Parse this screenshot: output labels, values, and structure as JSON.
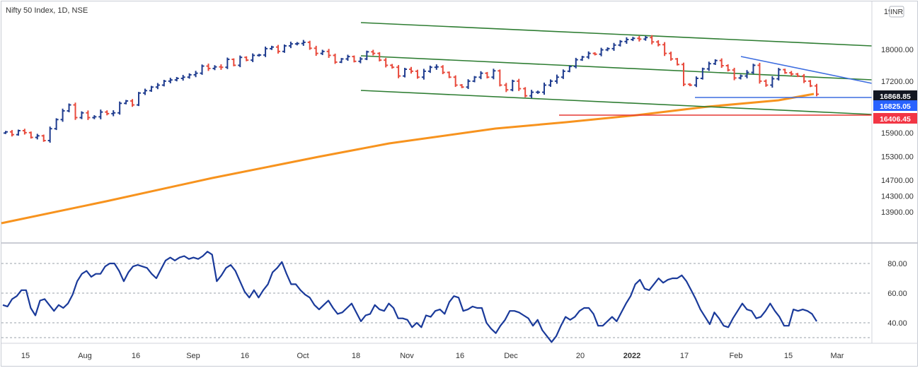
{
  "header": {
    "title": "Nifty 50 Index, 1D, NSE",
    "currency": "INR"
  },
  "price_axis": {
    "top_label": "19",
    "ticks": [
      "18000.00",
      "17200.00",
      "16600.00",
      "15900.00",
      "15300.00",
      "14700.00",
      "14300.00",
      "13900.00"
    ]
  },
  "price_badges": [
    {
      "label": "16868.85",
      "color": "#131722"
    },
    {
      "label": "16825.05",
      "color": "#2962ff"
    },
    {
      "label": "16406.45",
      "color": "#f23645"
    }
  ],
  "rsi_axis": {
    "ticks": [
      "80.00",
      "60.00",
      "40.00"
    ]
  },
  "time_axis": {
    "labels": [
      "15",
      "Aug",
      "16",
      "Sep",
      "16",
      "Oct",
      "18",
      "Nov",
      "16",
      "Dec",
      "20",
      "2022",
      "17",
      "Feb",
      "15",
      "Mar"
    ]
  },
  "colors": {
    "up": "#1f3c8f",
    "down": "#e84a3c",
    "ma": "#f7931e",
    "channel": "#2e7d32",
    "trendline": "#3d6de0",
    "support_red": "#e53935",
    "rsi": "#1a3a9a"
  },
  "chart_data": [
    {
      "type": "candlestick",
      "title": "Nifty 50 Index, 1D, NSE",
      "ylim": [
        13700,
        19000
      ],
      "x_labels": [
        "15",
        "Aug",
        "16",
        "Sep",
        "16",
        "Oct",
        "18",
        "Nov",
        "16",
        "Dec",
        "20",
        "2022",
        "17",
        "Feb",
        "15",
        "Mar"
      ],
      "close": [
        15920,
        15850,
        15950,
        15900,
        15780,
        15820,
        15700,
        16000,
        16230,
        16450,
        16600,
        16280,
        16400,
        16280,
        16300,
        16420,
        16380,
        16400,
        16640,
        16700,
        16600,
        16900,
        16960,
        17050,
        17100,
        17200,
        17230,
        17270,
        17300,
        17360,
        17400,
        17580,
        17520,
        17560,
        17550,
        17750,
        17600,
        17800,
        17730,
        17850,
        17860,
        18020,
        18060,
        17950,
        18090,
        18140,
        18150,
        18180,
        18030,
        17900,
        17950,
        17850,
        17680,
        17760,
        17820,
        17700,
        17760,
        17940,
        17900,
        17730,
        17600,
        17550,
        17330,
        17500,
        17450,
        17300,
        17450,
        17550,
        17560,
        17420,
        17300,
        17100,
        17050,
        17200,
        17300,
        17400,
        17300,
        17460,
        17100,
        16980,
        17200,
        17010,
        16830,
        16920,
        16920,
        17100,
        17200,
        17300,
        17450,
        17570,
        17740,
        17810,
        17900,
        17880,
        17990,
        18020,
        18110,
        18200,
        18250,
        18280,
        18260,
        18300,
        18190,
        18120,
        17900,
        17760,
        17620,
        17120,
        17100,
        17270,
        17510,
        17640,
        17720,
        17590,
        17480,
        17280,
        17330,
        17420,
        17600,
        17200,
        17100,
        17260,
        17490,
        17410,
        17380,
        17330,
        17200,
        17080,
        16870
      ]
    },
    {
      "type": "line",
      "name": "",
      "ylim": [
        20,
        95
      ],
      "y_ticks": [
        80,
        60,
        40
      ],
      "values": [
        52,
        51,
        56,
        58,
        62,
        62,
        50,
        45,
        55,
        56,
        52,
        48,
        52,
        50,
        53,
        59,
        68,
        73,
        75,
        71,
        73,
        73,
        78,
        80,
        80,
        75,
        68,
        74,
        78,
        79,
        78,
        77,
        73,
        70,
        76,
        82,
        84,
        82,
        84,
        85,
        83,
        84,
        83,
        85,
        88,
        86,
        68,
        72,
        77,
        79,
        75,
        68,
        61,
        57,
        62,
        57,
        62,
        66,
        74,
        77,
        81,
        73,
        66,
        66,
        62,
        59,
        57,
        52,
        49,
        52,
        55,
        50,
        46,
        47,
        50,
        53,
        47,
        41,
        45,
        46,
        52,
        49,
        48,
        53,
        50,
        43,
        43,
        42,
        37,
        40,
        37,
        45,
        44,
        48,
        49,
        46,
        54,
        58,
        57,
        48,
        49,
        51,
        50,
        50,
        40,
        36,
        33,
        38,
        42,
        48,
        48,
        47,
        45,
        43,
        38,
        42,
        35,
        31,
        27,
        31,
        38,
        44,
        42,
        44,
        48,
        50,
        50,
        46,
        38,
        38,
        41,
        44,
        41,
        47,
        53,
        58,
        66,
        69,
        63,
        62,
        66,
        70,
        67,
        69,
        70,
        70,
        72,
        68,
        62,
        56,
        49,
        44,
        39,
        47,
        43,
        38,
        37,
        43,
        48,
        53,
        49,
        48,
        43,
        44,
        48,
        53,
        48,
        44,
        38,
        38,
        49,
        48,
        49,
        48,
        46,
        41
      ]
    }
  ]
}
